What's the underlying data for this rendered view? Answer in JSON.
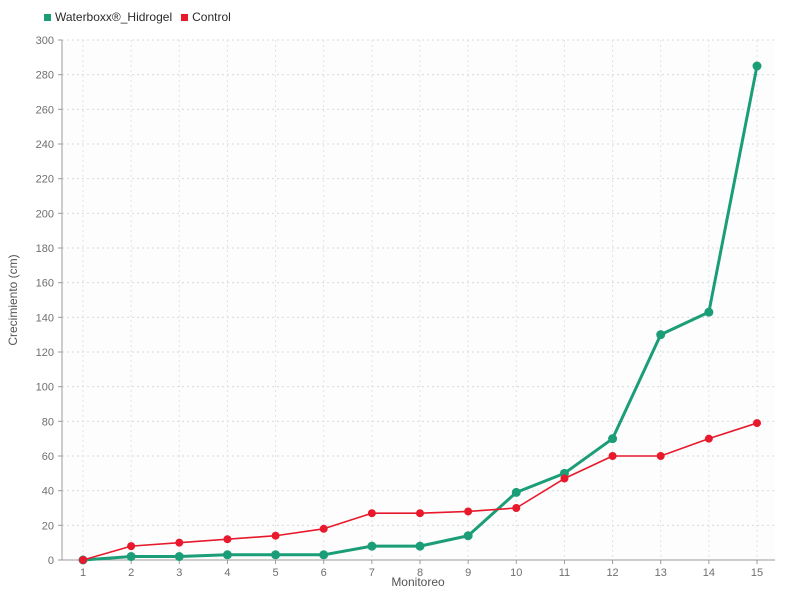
{
  "chart_data": {
    "type": "line",
    "title": "",
    "xlabel": "Monitoreo",
    "ylabel": "Crecimiento (cm)",
    "x": [
      1,
      2,
      3,
      4,
      5,
      6,
      7,
      8,
      9,
      10,
      11,
      12,
      13,
      14,
      15
    ],
    "ylim": [
      0,
      300
    ],
    "ytick_step": 20,
    "grid": true,
    "grid_style": "dotted",
    "legend_position": "top-left",
    "series": [
      {
        "name": "Waterboxx®_Hidrogel",
        "color": "#1b9e77",
        "marker": "circle",
        "values": [
          0,
          2,
          2,
          3,
          3,
          3,
          8,
          8,
          14,
          39,
          50,
          70,
          130,
          143,
          285
        ]
      },
      {
        "name": "Control",
        "color": "#e8192c",
        "marker": "circle",
        "values": [
          0,
          8,
          10,
          12,
          14,
          18,
          27,
          27,
          28,
          30,
          47,
          60,
          60,
          70,
          79
        ]
      }
    ]
  },
  "colors": {
    "axis_line": "#9a9a9a",
    "tick_label": "#6f6f6f",
    "h_gridline": "#d9d9d9",
    "v_gridline": "#e3e3e3",
    "plot_background": "#fdfdfd"
  }
}
